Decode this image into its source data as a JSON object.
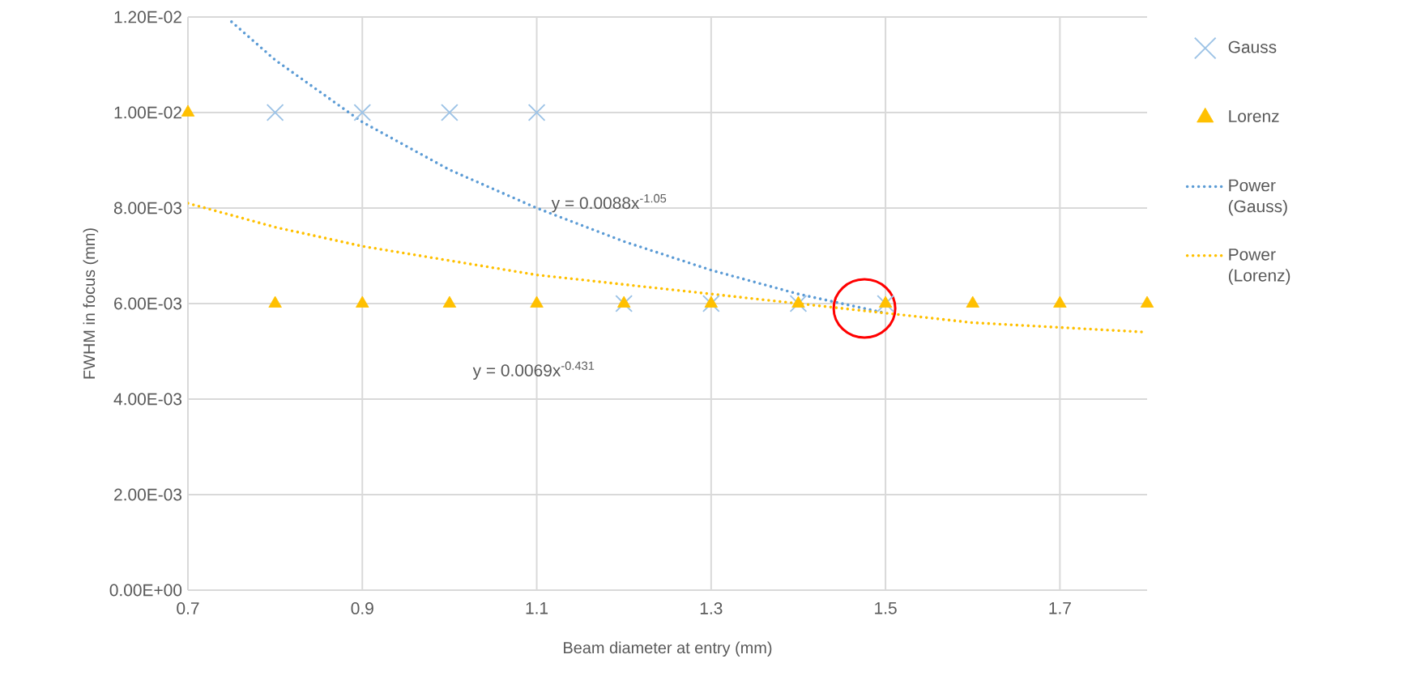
{
  "chart_data": {
    "type": "scatter",
    "xlabel": "Beam diameter at entry (mm)",
    "ylabel": "FWHM in focus (mm)",
    "x": [
      0.8,
      0.9,
      1.0,
      1.1,
      1.2,
      1.3,
      1.4,
      1.5
    ],
    "series": [
      {
        "name": "Gauss",
        "color": "#9dc3e6",
        "marker": "cross",
        "values": [
          0.01,
          0.01,
          0.01,
          0.01,
          0.006,
          0.006,
          0.006,
          0.006
        ]
      },
      {
        "name": "Lorenz",
        "color": "#ffc000",
        "marker": "triangle",
        "x": [
          0.7,
          0.8,
          0.9,
          1.0,
          1.1,
          1.2,
          1.3,
          1.4,
          1.5,
          1.6,
          1.7,
          1.8
        ],
        "values": [
          0.01,
          0.006,
          0.006,
          0.006,
          0.006,
          0.006,
          0.006,
          0.006,
          0.006,
          0.006,
          0.006,
          0.006
        ]
      },
      {
        "name": "Power (Gauss)",
        "type": "line",
        "color": "#5b9bd5",
        "line_style": "dotted",
        "marker": "none",
        "x": [
          0.75,
          0.8,
          0.9,
          1.0,
          1.1,
          1.2,
          1.3,
          1.4,
          1.5
        ],
        "values": [
          0.0119,
          0.0111,
          0.0098,
          0.0088,
          0.008,
          0.0073,
          0.0067,
          0.0062,
          0.0058
        ]
      },
      {
        "name": "Power (Lorenz)",
        "type": "line",
        "color": "#ffc000",
        "line_style": "dotted",
        "marker": "none",
        "x": [
          0.7,
          0.8,
          0.9,
          1.0,
          1.1,
          1.2,
          1.3,
          1.4,
          1.5,
          1.6,
          1.7,
          1.8
        ],
        "values": [
          0.0081,
          0.0076,
          0.0072,
          0.0069,
          0.0066,
          0.0064,
          0.0062,
          0.006,
          0.0058,
          0.0056,
          0.0055,
          0.0054
        ]
      }
    ],
    "annotations": [
      "y = 0.0088x$^{-1.05}$",
      "y = 0.0069x$^{-0.431}$"
    ],
    "xlim": [
      0.7,
      1.8
    ],
    "xticks": [
      0.7,
      0.9,
      1.1,
      1.3,
      1.5,
      1.7
    ],
    "ylim": [
      0,
      0.012
    ],
    "yticks": [
      {
        "value": 0,
        "label": "0.00E+00"
      },
      {
        "value": 0.002,
        "label": "2.00E-03"
      },
      {
        "value": 0.004,
        "label": "4.00E-03"
      },
      {
        "value": 0.006,
        "label": "6.00E-03"
      },
      {
        "value": 0.008,
        "label": "8.00E-03"
      },
      {
        "value": 0.01,
        "label": "1.00E-02"
      },
      {
        "value": 0.012,
        "label": "1.20E-02"
      }
    ],
    "grid": true,
    "legend": "right"
  }
}
